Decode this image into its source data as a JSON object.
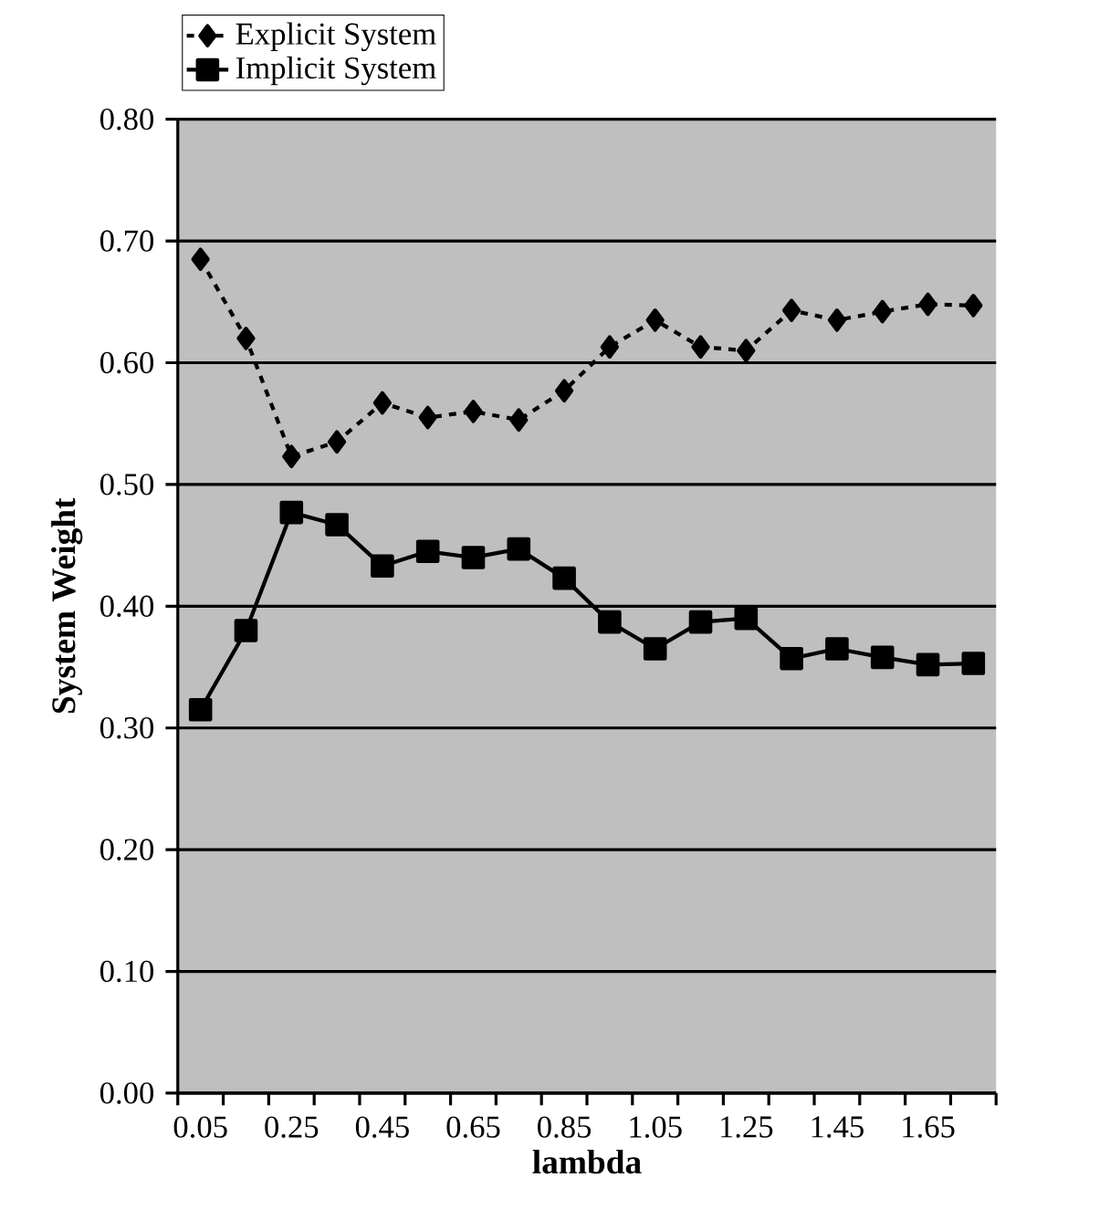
{
  "chart_data": {
    "type": "line",
    "xlabel": "lambda",
    "ylabel": "System Weight",
    "categories": [
      "0.05",
      null,
      "0.25",
      null,
      "0.45",
      null,
      "0.65",
      null,
      "0.85",
      null,
      "1.05",
      null,
      "1.25",
      null,
      "1.45",
      null,
      "1.65",
      null
    ],
    "series": [
      {
        "name": "Explicit System",
        "color": "#000000",
        "marker": "diamond",
        "line_style": "dashed",
        "values": [
          0.685,
          0.62,
          0.523,
          0.535,
          0.567,
          0.555,
          0.56,
          0.553,
          0.577,
          0.613,
          0.635,
          0.613,
          0.61,
          0.643,
          0.635,
          0.642,
          0.648,
          0.647
        ]
      },
      {
        "name": "Implicit System",
        "color": "#000000",
        "marker": "square",
        "line_style": "solid",
        "values": [
          0.315,
          0.38,
          0.477,
          0.467,
          0.433,
          0.445,
          0.44,
          0.447,
          0.423,
          0.387,
          0.365,
          0.387,
          0.39,
          0.357,
          0.365,
          0.358,
          0.352,
          0.353
        ]
      }
    ],
    "ylim": [
      0,
      0.8
    ],
    "yticks": [
      {
        "value": 0,
        "label": "0.00"
      },
      {
        "value": 0.1,
        "label": "0.10"
      },
      {
        "value": 0.2,
        "label": "0.20"
      },
      {
        "value": 0.3,
        "label": "0.30"
      },
      {
        "value": 0.4,
        "label": "0.40"
      },
      {
        "value": 0.5,
        "label": "0.50"
      },
      {
        "value": 0.6,
        "label": "0.60"
      },
      {
        "value": 0.7,
        "label": "0.70"
      },
      {
        "value": 0.8,
        "label": "0.80"
      }
    ],
    "grid": "y",
    "legend": "top left"
  }
}
